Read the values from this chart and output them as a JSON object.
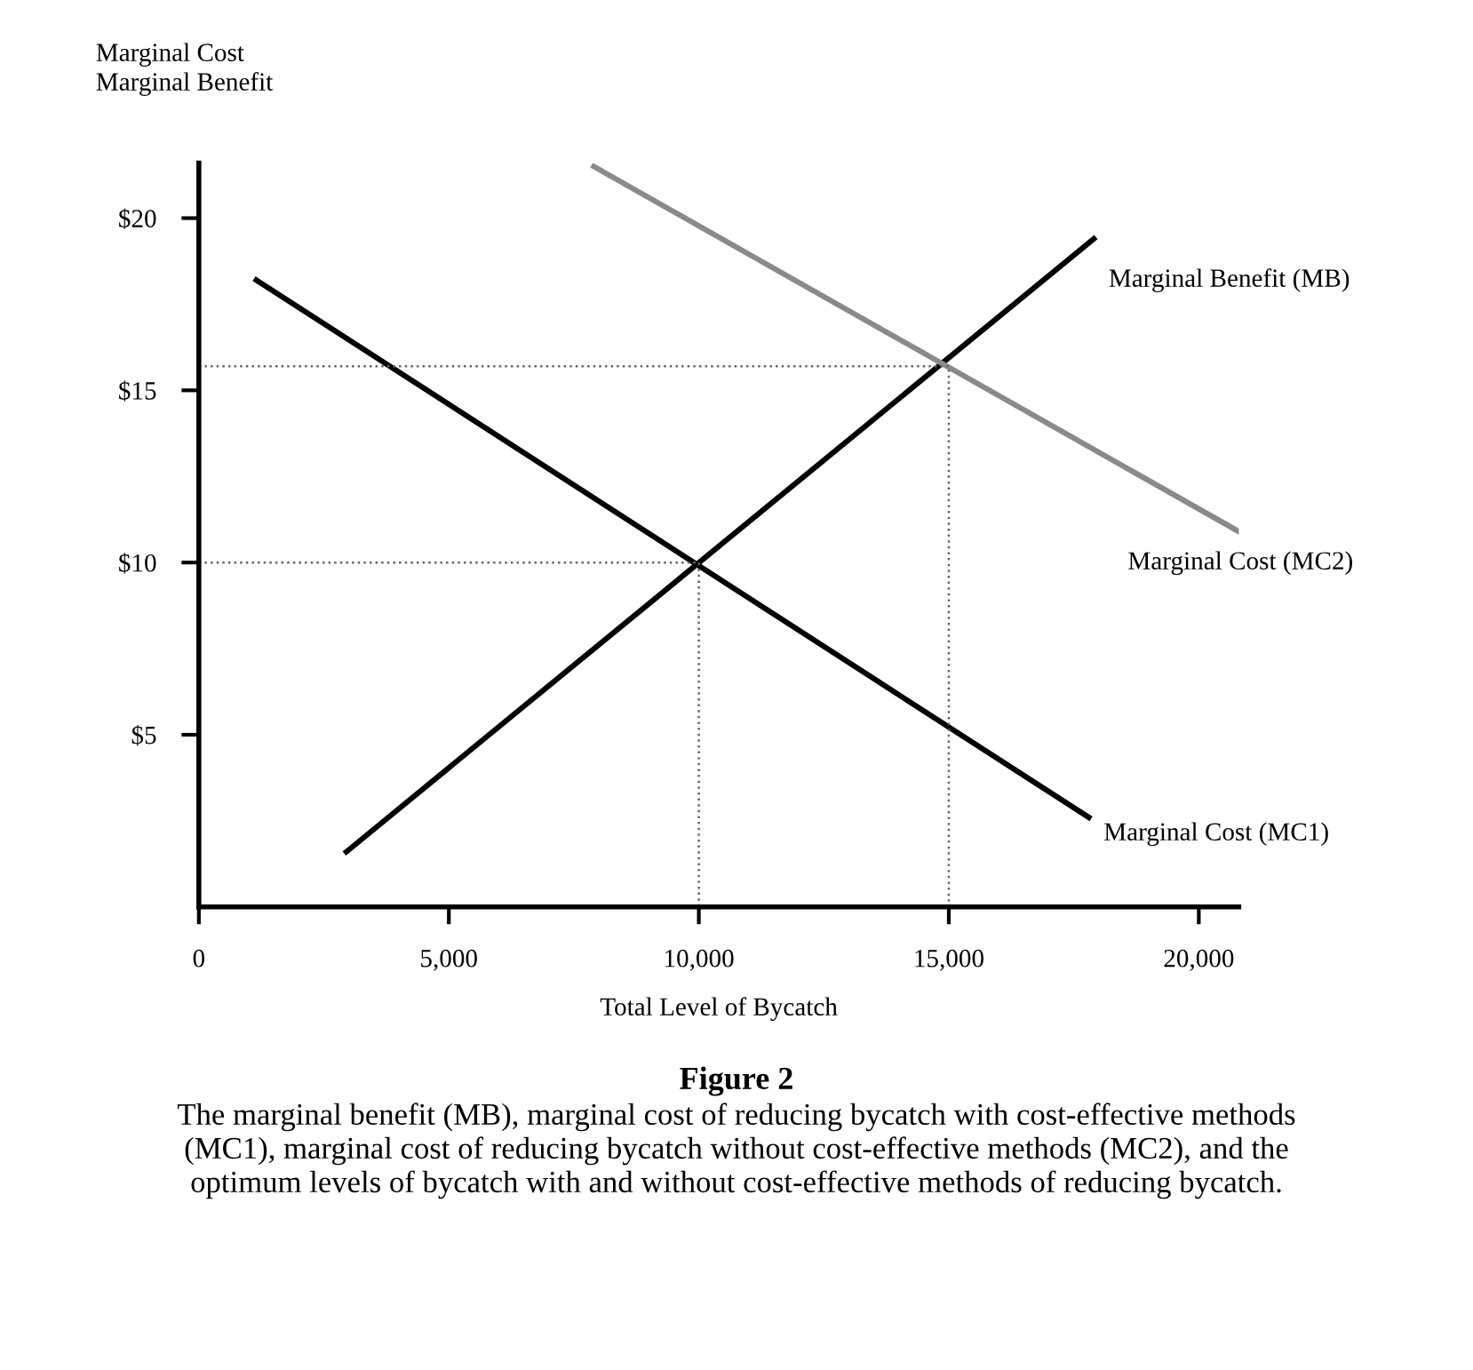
{
  "chart_data": {
    "type": "line",
    "title": "Figure 2",
    "subtitle": "The marginal benefit (MB), marginal cost of reducing bycatch with cost-effective methods (MC1), marginal cost of reducing bycatch without cost-effective methods (MC2), and the optimum levels of bycatch with and without cost-effective methods of reducing bycatch.",
    "xlabel": "Total Level of Bycatch",
    "ylabel": "Marginal Cost\nMarginal Benefit",
    "xlim": [
      0,
      20800
    ],
    "ylim": [
      0,
      21.6
    ],
    "xticks": [
      0,
      {
        "value": 5000,
        "label": "5,000"
      },
      {
        "value": 10000,
        "label": "10,000"
      },
      {
        "value": 15000,
        "label": "15,000"
      },
      {
        "value": 20000,
        "label": "20,000"
      }
    ],
    "yticks": [
      {
        "value": 5,
        "label": "$5"
      },
      {
        "value": 10,
        "label": "$10"
      },
      {
        "value": 15,
        "label": "$15"
      },
      {
        "value": 20,
        "label": "$20"
      }
    ],
    "grid": false,
    "legend": false,
    "marker": "none",
    "series": [
      {
        "name": "Marginal Benefit (MB)",
        "color": "#000000",
        "x": [
          2950,
          17900
        ],
        "values": [
          1.6,
          19.4
        ]
      },
      {
        "name": "Marginal Cost (MC2)",
        "color": "#8a8a8a",
        "x": [
          7900,
          20800
        ],
        "values": [
          21.5,
          10.9
        ]
      },
      {
        "name": "Marginal Cost (MC1)",
        "color": "#000000",
        "x": [
          1150,
          17800
        ],
        "values": [
          18.2,
          2.6
        ]
      },
      {
        "color": "#666666",
        "line_style": "dotted",
        "x": [
          0,
          15000,
          15000
        ],
        "values": [
          15.7,
          15.7,
          0
        ]
      },
      {
        "color": "#666666",
        "line_style": "dotted",
        "x": [
          0,
          10000,
          10000
        ],
        "values": [
          10,
          10,
          0
        ]
      }
    ]
  }
}
